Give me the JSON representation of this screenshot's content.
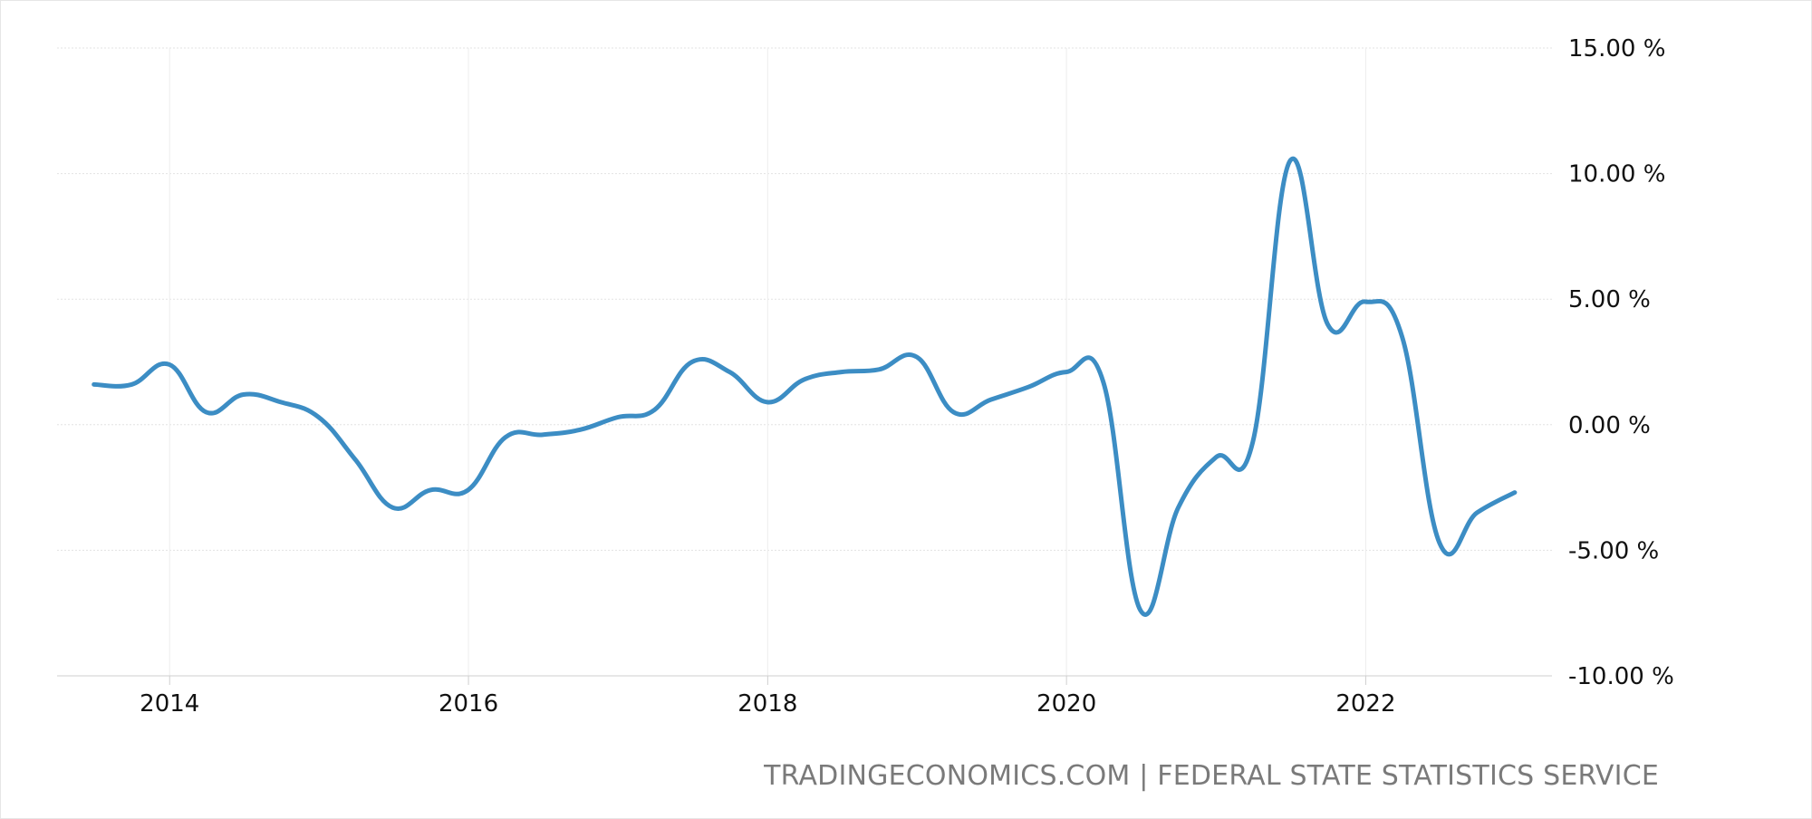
{
  "chart_data": {
    "type": "line",
    "title": "",
    "xlabel": "",
    "ylabel": "",
    "xlim": [
      "2013-04-01",
      "2023-04-01"
    ],
    "ylim": [
      -10,
      15
    ],
    "x_ticks": [
      "2014",
      "2016",
      "2018",
      "2020",
      "2022"
    ],
    "y_ticks": [
      "15.00 %",
      "10.00 %",
      "5.00 %",
      "0.00 %",
      "-5.00 %",
      "-10.00 %"
    ],
    "grid": true,
    "line_color": "#3c8dc4",
    "series": [
      {
        "x": [
          "2013-06-30",
          "2013-09-30",
          "2013-12-31",
          "2014-03-31",
          "2014-06-30",
          "2014-09-30",
          "2014-12-31",
          "2015-03-31",
          "2015-06-30",
          "2015-09-30",
          "2015-12-31",
          "2016-03-31",
          "2016-06-30",
          "2016-09-30",
          "2016-12-31",
          "2017-03-31",
          "2017-06-30",
          "2017-09-30",
          "2017-12-31",
          "2018-03-31",
          "2018-06-30",
          "2018-09-30",
          "2018-12-31",
          "2019-03-31",
          "2019-06-30",
          "2019-09-30",
          "2019-12-31",
          "2020-03-31",
          "2020-06-30",
          "2020-09-30",
          "2020-12-31",
          "2021-03-31",
          "2021-06-30",
          "2021-09-30",
          "2021-12-31",
          "2022-03-31",
          "2022-06-30",
          "2022-09-30",
          "2022-12-31"
        ],
        "values": [
          1.6,
          1.6,
          2.4,
          0.5,
          1.2,
          0.9,
          0.3,
          -1.4,
          -3.3,
          -2.6,
          -2.6,
          -0.5,
          -0.4,
          -0.2,
          0.3,
          0.6,
          2.5,
          2.1,
          0.9,
          1.8,
          2.1,
          2.2,
          2.7,
          0.5,
          1.0,
          1.5,
          2.1,
          1.7,
          -7.4,
          -3.3,
          -1.3,
          -0.7,
          10.5,
          4.0,
          4.9,
          3.5,
          -4.7,
          -3.5,
          -2.7
        ]
      }
    ]
  },
  "source": "TRADINGECONOMICS.COM | FEDERAL STATE STATISTICS SERVICE"
}
